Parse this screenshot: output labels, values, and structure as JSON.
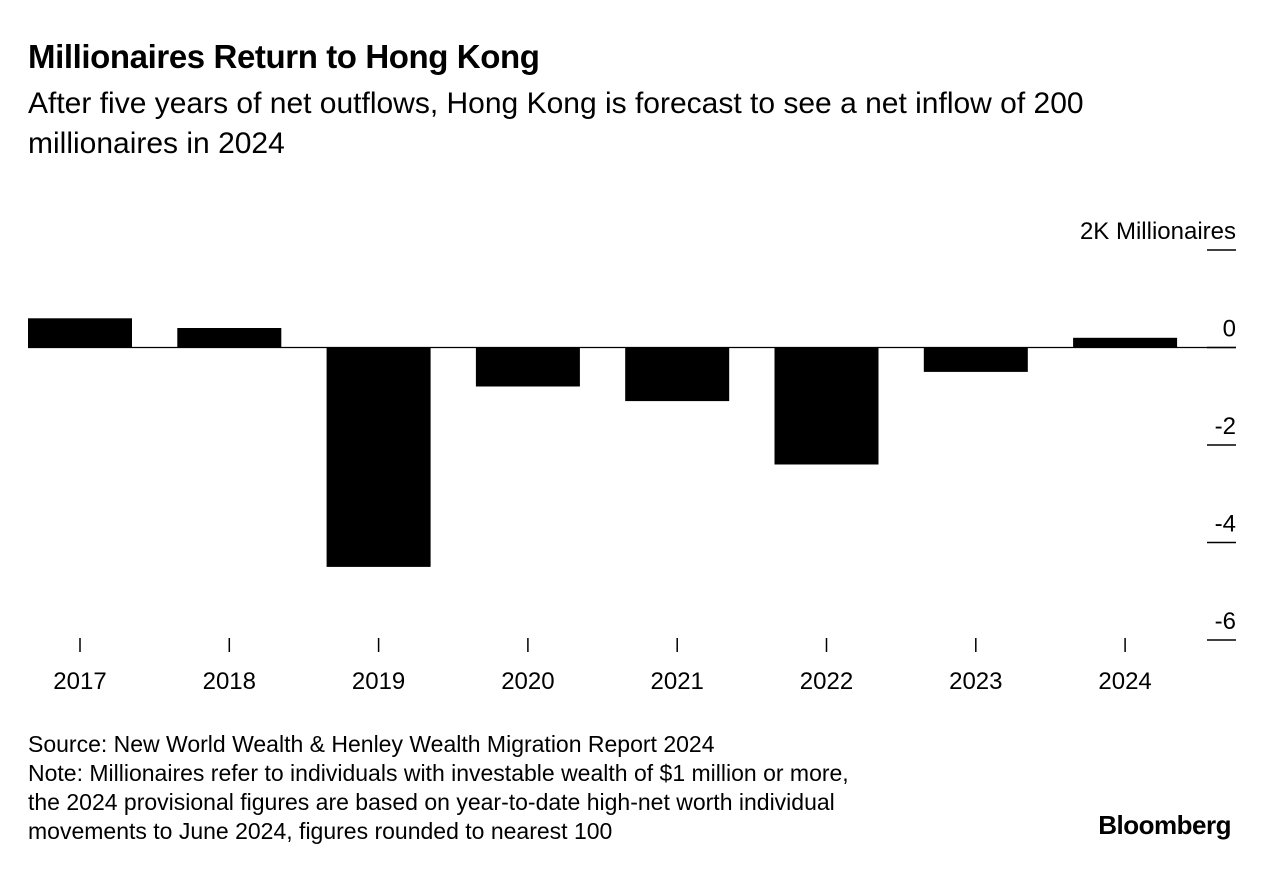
{
  "header": {
    "title": "Millionaires Return to Hong Kong",
    "subtitle": "After five years of net outflows, Hong Kong is forecast to see a net inflow of 200 millionaires in 2024"
  },
  "chart_data": {
    "type": "bar",
    "title": "Millionaires Return to Hong Kong",
    "subtitle": "After five years of net outflows, Hong Kong is forecast to see a net inflow of 200 millionaires in 2024",
    "categories": [
      "2017",
      "2018",
      "2019",
      "2020",
      "2021",
      "2022",
      "2023",
      "2024"
    ],
    "values": [
      0.6,
      0.4,
      -4.5,
      -0.8,
      -1.1,
      -2.4,
      -0.5,
      0.2
    ],
    "unit": "Millionaires",
    "ylabel": "2K Millionaires",
    "y_ticks": [
      2,
      0,
      -2,
      -4,
      -6
    ],
    "y_tick_labels": [
      "2K",
      "0",
      "-2",
      "-4",
      "-6"
    ],
    "ylim": [
      -6,
      2
    ],
    "bar_color": "#000000",
    "grid": false,
    "axis_side": "right"
  },
  "footer": {
    "source": "Source: New World Wealth & Henley Wealth Migration Report 2024",
    "note_lines": [
      "Note: Millionaires refer to individuals with investable wealth of $1 million or more,",
      "the 2024 provisional figures are based on year-to-date high-net worth individual",
      "movements to June 2024, figures rounded to nearest 100"
    ],
    "brand": "Bloomberg"
  }
}
